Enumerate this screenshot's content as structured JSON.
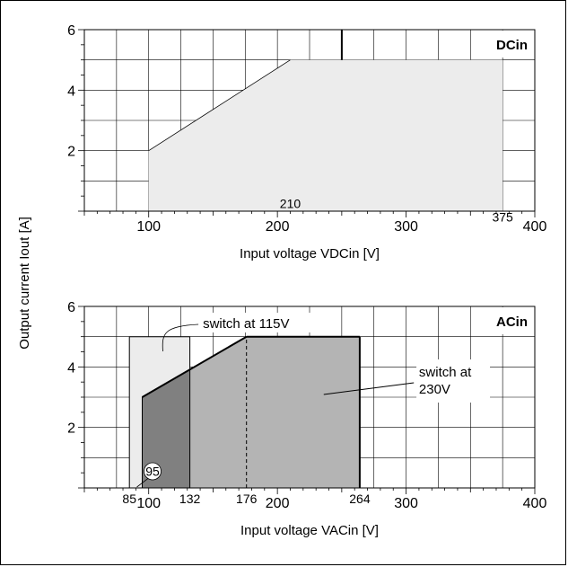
{
  "shared_ylabel": "Output current Iout [A]",
  "chart_data": [
    {
      "type": "area",
      "tag": "DCin",
      "xlabel": "Input voltage VDCin [V]",
      "xlim": [
        50,
        400
      ],
      "ylim": [
        0,
        6
      ],
      "x_ticks": [
        100,
        200,
        300,
        400
      ],
      "y_ticks": [
        2,
        4,
        6
      ],
      "grid": true,
      "regions": [
        {
          "fill": "#ececec",
          "stroke": "none",
          "points": [
            [
              100,
              0
            ],
            [
              100,
              2
            ],
            [
              210,
              5
            ],
            [
              375,
              5
            ],
            [
              375,
              0
            ]
          ]
        }
      ],
      "lines": [
        {
          "points": [
            [
              100,
              2
            ],
            [
              210,
              5
            ]
          ],
          "stroke": "#000000",
          "width": 0.8
        },
        {
          "points": [
            [
              250,
              5
            ],
            [
              250,
              6
            ]
          ],
          "stroke": "#000000",
          "width": 2
        }
      ],
      "point_labels": [
        {
          "text": "210",
          "x": 210,
          "y": 0.25
        },
        {
          "text": "375",
          "x": 375,
          "y": -0.2
        }
      ]
    },
    {
      "type": "area",
      "tag": "ACin",
      "xlabel": "Input voltage VACin [V]",
      "xlim": [
        50,
        400
      ],
      "ylim": [
        0,
        6
      ],
      "x_ticks": [
        100,
        200,
        300,
        400
      ],
      "y_ticks": [
        2,
        4,
        6
      ],
      "grid": true,
      "regions": [
        {
          "fill": "#ececec",
          "stroke": "#000000",
          "points": [
            [
              85,
              0
            ],
            [
              85,
              5
            ],
            [
              132,
              5
            ],
            [
              132,
              0
            ]
          ]
        },
        {
          "fill": "#b4b4b4",
          "stroke": "#000000",
          "points": [
            [
              95,
              0
            ],
            [
              95,
              3
            ],
            [
              176,
              5
            ],
            [
              264,
              5
            ],
            [
              264,
              0
            ]
          ]
        },
        {
          "fill": "#808080",
          "stroke": "#000000",
          "points": [
            [
              95,
              0
            ],
            [
              95,
              3
            ],
            [
              132,
              3.915
            ],
            [
              132,
              0
            ]
          ]
        }
      ],
      "lines": [
        {
          "points": [
            [
              95,
              3
            ],
            [
              176,
              5
            ]
          ],
          "stroke": "#000000",
          "width": 2
        },
        {
          "points": [
            [
              176,
              5
            ],
            [
              264,
              5
            ]
          ],
          "stroke": "#000000",
          "width": 2
        },
        {
          "points": [
            [
              264,
              5
            ],
            [
              264,
              0
            ]
          ],
          "stroke": "#000000",
          "width": 2
        },
        {
          "points": [
            [
              176,
              0
            ],
            [
              176,
              5
            ]
          ],
          "stroke": "#000000",
          "width": 1,
          "dash": "4,3"
        }
      ],
      "point_labels": [
        {
          "text": "85",
          "x": 85,
          "y": -0.35
        },
        {
          "text": "132",
          "x": 132,
          "y": -0.35
        },
        {
          "text": "176",
          "x": 176,
          "y": -0.35
        },
        {
          "text": "264",
          "x": 264,
          "y": -0.35
        }
      ],
      "circle_label": {
        "text": "95",
        "x": 103,
        "y": 0.55
      },
      "annotations": [
        {
          "text": "switch at 115V"
        },
        {
          "text": "switch at 230V",
          "lines": [
            "switch at",
            "230V"
          ]
        }
      ]
    }
  ]
}
